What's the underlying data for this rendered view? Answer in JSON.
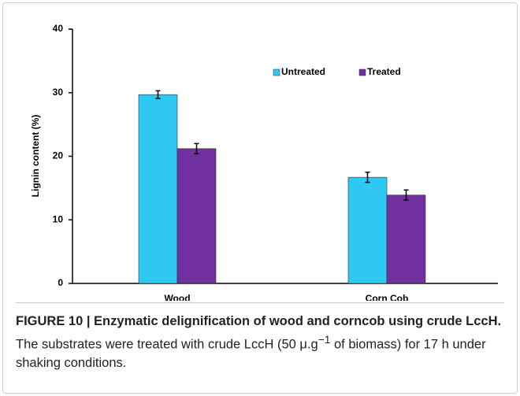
{
  "chart_data": {
    "type": "bar",
    "y_label": "Lignin content (%)",
    "categories": [
      "Wood",
      "Corn Cob"
    ],
    "series": [
      {
        "name": "Untreated",
        "color": "#2ec8f2",
        "values": [
          29.7,
          16.7
        ],
        "errors": [
          0.6,
          0.8
        ]
      },
      {
        "name": "Treated",
        "color": "#7030a0",
        "values": [
          21.2,
          13.9
        ],
        "errors": [
          0.8,
          0.8
        ]
      }
    ],
    "ylim": [
      0,
      40
    ],
    "yticks": [
      0,
      10,
      20,
      30,
      40
    ]
  },
  "caption": {
    "label": "FIGURE 10 | Enzymatic delignification of wood and corncob using crude LccH.",
    "text_before": "The substrates were treated with crude LccH (50 μ.g",
    "superscript": "−1",
    "text_after": "of biomass) for 17 h under shaking conditions."
  }
}
